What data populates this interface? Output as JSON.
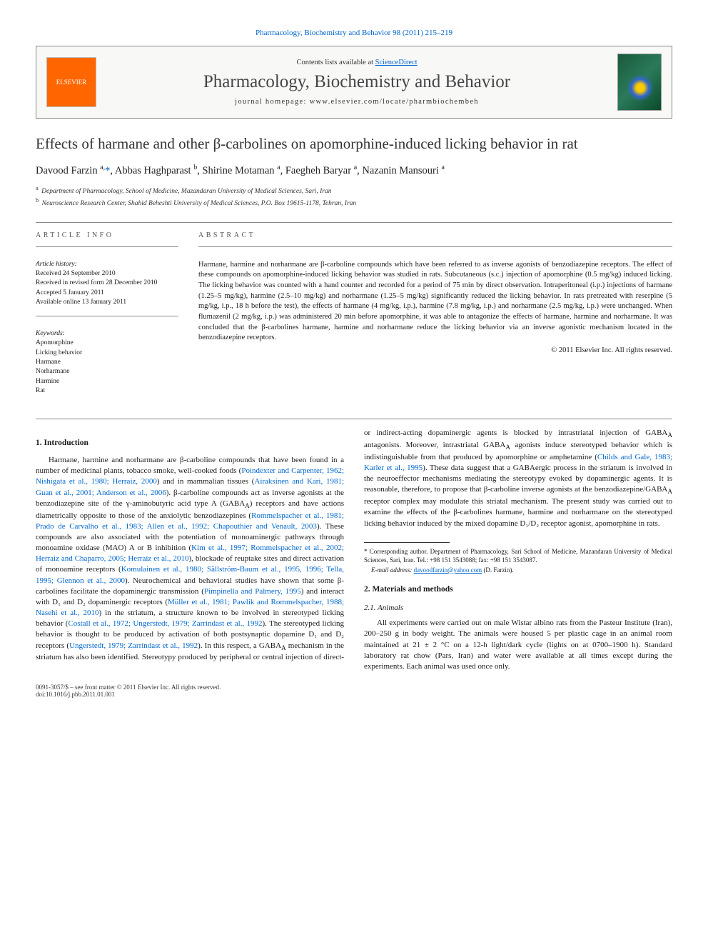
{
  "top_citation": "Pharmacology, Biochemistry and Behavior 98 (2011) 215–219",
  "header": {
    "contents_prefix": "Contents lists available at ",
    "sciencedirect": "ScienceDirect",
    "journal": "Pharmacology, Biochemistry and Behavior",
    "homepage_prefix": "journal homepage: ",
    "homepage": "www.elsevier.com/locate/pharmbiochembeh",
    "publisher_logo": "ELSEVIER"
  },
  "title": "Effects of harmane and other β-carbolines on apomorphine-induced licking behavior in rat",
  "authors_html": "Davood Farzin <sup>a,</sup><span class='star'>*</span>, Abbas Haghparast <sup>b</sup>, Shirine Motaman <sup>a</sup>, Faegheh Baryar <sup>a</sup>, Nazanin Mansouri <sup>a</sup>",
  "affiliations": {
    "a": "Department of Pharmacology, School of Medicine, Mazandaran University of Medical Sciences, Sari, Iran",
    "b": "Neuroscience Research Center, Shahid Beheshti University of Medical Sciences, P.O. Box 19615-1178, Tehran, Iran"
  },
  "article_info": {
    "heading": "article info",
    "history_label": "Article history:",
    "received": "Received 24 September 2010",
    "revised": "Received in revised form 28 December 2010",
    "accepted": "Accepted 5 January 2011",
    "online": "Available online 13 January 2011",
    "keywords_label": "Keywords:",
    "keywords": [
      "Apomorphine",
      "Licking behavior",
      "Harmane",
      "Norharmane",
      "Harmine",
      "Rat"
    ]
  },
  "abstract": {
    "heading": "abstract",
    "body": "Harmane, harmine and norharmane are β-carboline compounds which have been referred to as inverse agonists of benzodiazepine receptors. The effect of these compounds on apomorphine-induced licking behavior was studied in rats. Subcutaneous (s.c.) injection of apomorphine (0.5 mg/kg) induced licking. The licking behavior was counted with a hand counter and recorded for a period of 75 min by direct observation. Intraperitoneal (i.p.) injections of harmane (1.25–5 mg/kg), harmine (2.5–10 mg/kg) and norharmane (1.25–5 mg/kg) significantly reduced the licking behavior. In rats pretreated with reserpine (5 mg/kg, i.p., 18 h before the test), the effects of harmane (4 mg/kg, i.p.), harmine (7.8 mg/kg, i.p.) and norharmane (2.5 mg/kg, i.p.) were unchanged. When flumazenil (2 mg/kg, i.p.) was administered 20 min before apomorphine, it was able to antagonize the effects of harmane, harmine and norharmane. It was concluded that the β-carbolines harmane, harmine and norharmane reduce the licking behavior via an inverse agonistic mechanism located in the benzodiazepine receptors.",
    "copyright": "© 2011 Elsevier Inc. All rights reserved."
  },
  "sections": {
    "introduction": {
      "heading": "1. Introduction",
      "p1_a": "Harmane, harmine and norharmane are β-carboline compounds that have been found in a number of medicinal plants, tobacco smoke, well-cooked foods (",
      "p1_r1": "Poindexter and Carpenter, 1962; Nishigata et al., 1980; Herraiz, 2000",
      "p1_b": ") and in mammalian tissues (",
      "p1_r2": "Airaksinen and Kari, 1981; Guan et al., 2001; Anderson et al., 2006",
      "p1_c": "). β-carboline compounds act as inverse agonists at the benzodiazepine site of the γ-aminobutyric acid type A (GABA",
      "p1_c_sub": "A",
      "p1_d": ") receptors and have actions diametrically opposite to those of the anxiolytic benzodiazepines (",
      "p1_r3": "Rommelspacher et al., 1981; Prado de Carvalho et al., 1983; Allen et al., 1992; Chapouthier and Venault, 2003",
      "p1_e": "). These compounds are also associated with the potentiation of monoaminergic pathways through monoamine oxidase (MAO) A or B inhibition (",
      "p1_r4": "Kim et al., 1997; Rommelspacher et al., 2002; Herraiz and Chaparro, 2005; Herraiz et al., 2010",
      "p1_f": "), blockade of reuptake sites and direct activation of monoamine receptors (",
      "p1_r5": "Komulainen et al., 1980; Sällström-Baum et al., 1995, 1996; Tella, 1995; Glennon et al., 2000",
      "p1_g": "). Neurochemical and behavioral studies have shown that some β-carbolines facilitate the dopaminergic transmission (",
      "p1_r6": "Pimpinella and Palmery, 1995",
      "p1_h": ") and interact with D₁ and D₂ dopaminergic receptors (",
      "p1_r7": "Müller et al., 1981; Pawlik and Rommelspacher, 1988; Nasehi et al., 2010",
      "p1_i": ") in the striatum, a structure known to be involved in stereotyped licking behavior (",
      "p1_r8": "Costall et al., 1972; ",
      "p1_r8b": "Ungerstedt, 1979; Zarrindast et al., 1992",
      "p1_j": "). The stereotyped licking behavior is thought to be produced by activation of both postsynaptic dopamine D₁ and D₂ receptors (",
      "p1_r9": "Ungerstedt, 1979; Zarrindast et al., 1992",
      "p1_k": "). In this respect, a GABA",
      "p1_k_sub": "A",
      "p1_l": " mechanism in the striatum has also been identified. Stereotypy produced by peripheral or central injection of direct- or indirect-acting dopaminergic agents is blocked by intrastriatal injection of GABA",
      "p1_l_sub": "A",
      "p1_m": " antagonists. Moreover, intrastriatal GABA",
      "p1_m_sub": "A",
      "p1_n": " agonists induce stereotyped behavior which is indistinguishable from that produced by apomorphine or amphetamine (",
      "p1_r10": "Childs and Gale, 1983; Karler et al., 1995",
      "p1_o": "). These data suggest that a GABAergic process in the striatum is involved in the neuroeffector mechanisms mediating the stereotypy evoked by dopaminergic agents. It is reasonable, therefore, to propose that β-carboline inverse agonists at the benzodiazepine/GABA",
      "p1_o_sub": "A",
      "p1_p": " receptor complex may modulate this striatal mechanism. The present study was carried out to examine the effects of the β-carbolines harmane, harmine and norharmane on the stereotyped licking behavior induced by the mixed dopamine D₁/D₂ receptor agonist, apomorphine in rats."
    },
    "methods": {
      "heading": "2. Materials and methods",
      "animals_heading": "2.1. Animals",
      "animals_body": "All experiments were carried out on male Wistar albino rats from the Pasteur Institute (Iran), 200–250 g in body weight. The animals were housed 5 per plastic cage in an animal room maintained at 21 ± 2 °C on a 12-h light/dark cycle (lights on at 0700–1900 h). Standard laboratory rat chow (Pars, Iran) and water were available at all times except during the experiments. Each animal was used once only."
    }
  },
  "footnote": {
    "corr": "* Corresponding author. Department of Pharmacology, Sari School of Medicine, Mazandaran University of Medical Sciences, Sari, Iran. Tel.: +98 151 3543088; fax: +98 151 3543087.",
    "email_label": "E-mail address: ",
    "email": "davoodfarzin@yahoo.com",
    "email_suffix": " (D. Farzin)."
  },
  "footer": {
    "line1": "0091-3057/$ – see front matter © 2011 Elsevier Inc. All rights reserved.",
    "line2": "doi:10.1016/j.pbb.2011.01.001"
  },
  "colors": {
    "link": "#0066cc",
    "text": "#1a1a1a",
    "border": "#888888",
    "elsevier_orange": "#ff6600"
  }
}
